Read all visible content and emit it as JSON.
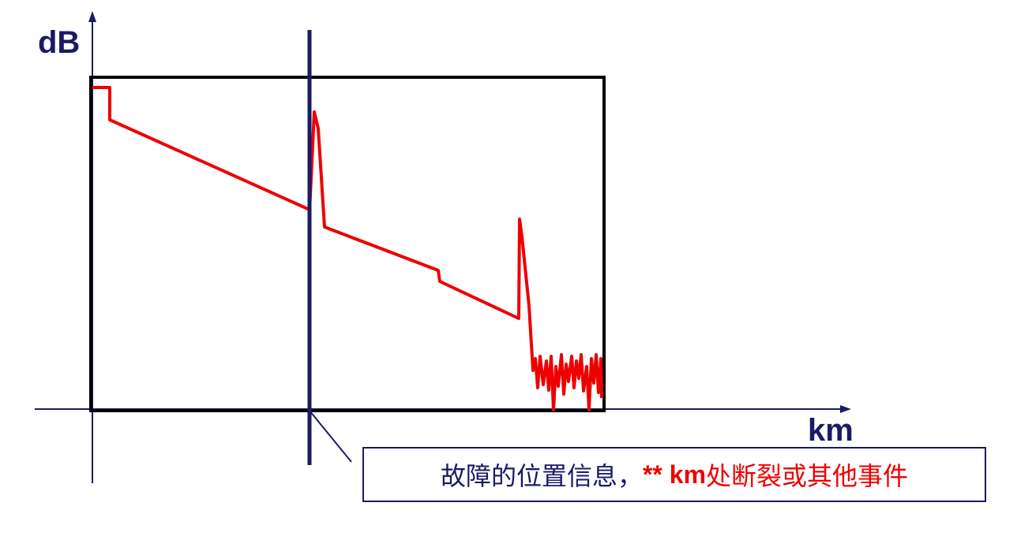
{
  "labels": {
    "y_axis": "dB",
    "x_axis": "km"
  },
  "callout": {
    "prefix": "故障的位置信息，",
    "marker": "** km",
    "suffix": "处断裂或其他事件"
  },
  "colors": {
    "axis": "#1a1a66",
    "frame": "#000000",
    "trace": "#ee0000",
    "cursor": "#1a1a66",
    "emphasis": "#ee0000"
  }
}
